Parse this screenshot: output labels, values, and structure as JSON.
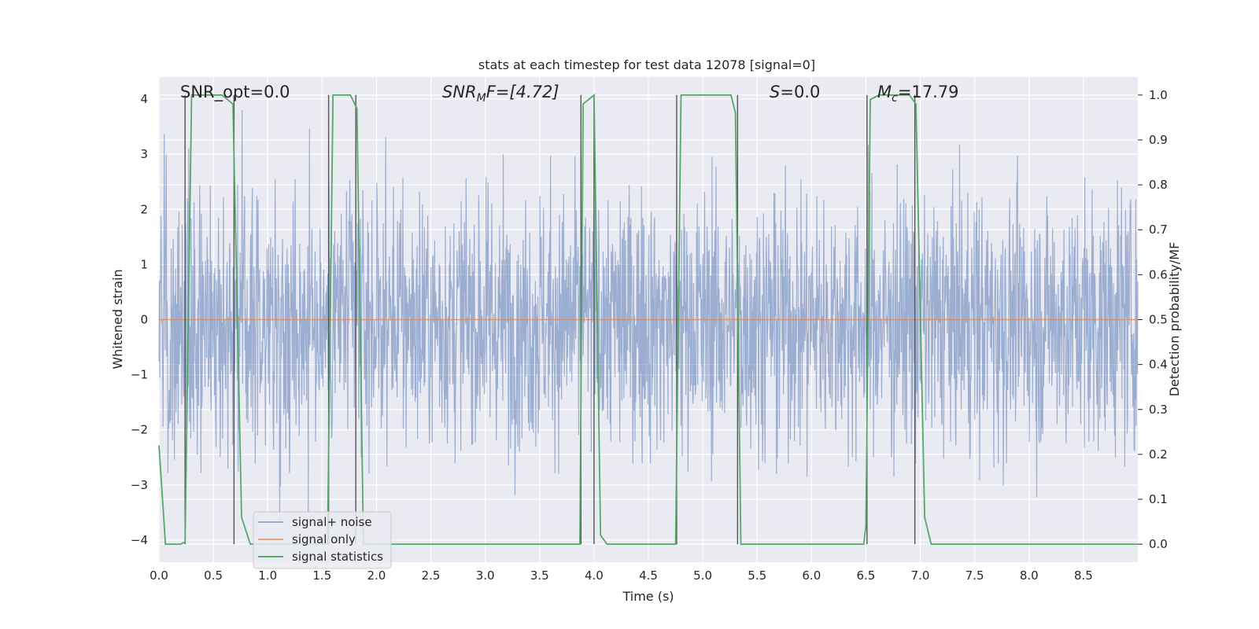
{
  "chart_data": {
    "type": "line",
    "title": "stats at each timestep for test data 12078 [signal=0]",
    "xlabel": "Time (s)",
    "ylabel_left": "Whitened strain",
    "ylabel_right": "Detection probability/MF",
    "xlim": [
      0.0,
      9.0
    ],
    "ylim_left": [
      -4.4,
      4.4
    ],
    "ylim_right": [
      -0.04,
      1.04
    ],
    "xticks": [
      0.0,
      0.5,
      1.0,
      1.5,
      2.0,
      2.5,
      3.0,
      3.5,
      4.0,
      4.5,
      5.0,
      5.5,
      6.0,
      6.5,
      7.0,
      7.5,
      8.0,
      8.5
    ],
    "xtick_labels": [
      "0.0",
      "0.5",
      "1.0",
      "1.5",
      "2.0",
      "2.5",
      "3.0",
      "3.5",
      "4.0",
      "4.5",
      "5.0",
      "5.5",
      "6.0",
      "6.5",
      "7.0",
      "7.5",
      "8.0",
      "8.5"
    ],
    "yticks_left": [
      4,
      3,
      2,
      1,
      0,
      -1,
      -2,
      -3,
      -4
    ],
    "yticks_left_labels": [
      "4",
      "3",
      "2",
      "1",
      "0",
      "−1",
      "−2",
      "−3",
      "−4"
    ],
    "yticks_right": [
      1.0,
      0.9,
      0.8,
      0.7,
      0.6,
      0.5,
      0.4,
      0.3,
      0.2,
      0.1,
      0.0
    ],
    "yticks_right_labels": [
      "1.0",
      "0.9",
      "0.8",
      "0.7",
      "0.6",
      "0.5",
      "0.4",
      "0.3",
      "0.2",
      "0.1",
      "0.0"
    ],
    "grid": true,
    "legend_position": "lower-left",
    "annotations": {
      "snr_opt": "SNR_opt=0.0",
      "snr_mf_main": "SNR",
      "snr_mf_sub": "M",
      "snr_mf_tail": "F=[4.72]",
      "s_main": "S",
      "s_tail": "=0.0",
      "mc_main": "M",
      "mc_sub": "c",
      "mc_tail": "=17.79"
    },
    "series": [
      {
        "name": "signal+ noise",
        "color": "#4c72b0",
        "style": "noise",
        "amplitude_typical": 1.6,
        "amplitude_peak": 3.8,
        "x_range": [
          0.0,
          9.0
        ]
      },
      {
        "name": "signal only",
        "color": "#dd8452",
        "x": [
          0.0,
          9.0
        ],
        "y": [
          0.0,
          0.0
        ]
      },
      {
        "name": "signal statistics",
        "color": "#55a868",
        "axis": "right",
        "x": [
          0.0,
          0.06,
          0.2,
          0.24,
          0.3,
          0.38,
          0.48,
          0.58,
          0.68,
          0.76,
          0.84,
          1.0,
          1.2,
          1.4,
          1.55,
          1.6,
          1.64,
          1.76,
          1.82,
          1.88,
          2.0,
          2.5,
          3.0,
          3.5,
          3.87,
          3.9,
          4.0,
          4.06,
          4.12,
          4.3,
          4.5,
          4.75,
          4.8,
          4.84,
          5.0,
          5.26,
          5.3,
          5.35,
          5.5,
          6.0,
          6.48,
          6.5,
          6.54,
          6.62,
          6.78,
          6.9,
          6.96,
          7.04,
          7.1,
          7.5,
          8.0,
          8.5,
          9.0
        ],
        "y": [
          0.22,
          0.0,
          0.0,
          0.005,
          1.0,
          1.0,
          1.0,
          1.0,
          0.98,
          0.06,
          0.0,
          0.0,
          0.0,
          0.0,
          0.0,
          1.0,
          1.0,
          1.0,
          0.97,
          0.0,
          0.0,
          0.0,
          0.0,
          0.0,
          0.0,
          0.98,
          1.0,
          0.02,
          0.0,
          0.0,
          0.0,
          0.0,
          1.0,
          1.0,
          1.0,
          1.0,
          0.96,
          0.0,
          0.0,
          0.0,
          0.0,
          0.04,
          0.99,
          1.0,
          1.0,
          1.0,
          0.98,
          0.06,
          0.0,
          0.0,
          0.0,
          0.0,
          0.0
        ]
      }
    ],
    "vertical_markers": [
      0.24,
      0.69,
      1.56,
      1.81,
      3.88,
      4.0,
      4.76,
      5.32,
      6.51,
      6.95
    ]
  }
}
